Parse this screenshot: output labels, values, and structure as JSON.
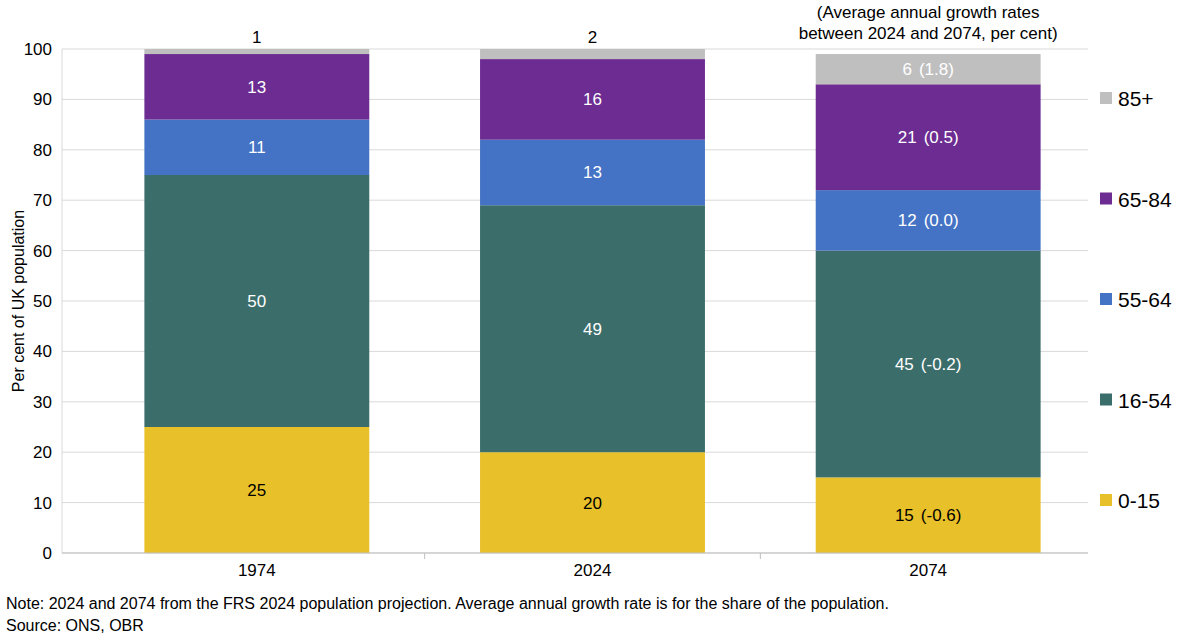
{
  "chart_data": {
    "type": "bar",
    "stacked": true,
    "data_labels": true,
    "grid": true,
    "legend": "right",
    "y_label": "Per cent of UK population",
    "annotations": [
      "(Average annual growth rates",
      "between 2024 and 2074, per cent)"
    ],
    "note": "Note: 2024 and 2074 from the FRS 2024 population projection. Average annual growth rate is for the share of the population.",
    "source": "Source: ONS, OBR",
    "categories": [
      "1974",
      "2024",
      "2074"
    ],
    "ylim": [
      0,
      100
    ],
    "yticks": [
      0,
      10,
      20,
      30,
      40,
      50,
      60,
      70,
      80,
      90,
      100
    ],
    "series": [
      {
        "name": "0-15",
        "color": "#e8c12a",
        "values": [
          25,
          20,
          15
        ],
        "growth_rate": {
          "value": -0.6,
          "label": "(-0.6)"
        }
      },
      {
        "name": "16-54",
        "color": "#3b6e6b",
        "values": [
          50,
          49,
          45
        ],
        "growth_rate": {
          "value": -0.2,
          "label": "(-0.2)"
        }
      },
      {
        "name": "55-64",
        "color": "#4472c4",
        "values": [
          11,
          13,
          12
        ],
        "growth_rate": {
          "value": 0.0,
          "label": "(0.0)"
        }
      },
      {
        "name": "65-84",
        "color": "#6c2c92",
        "values": [
          13,
          16,
          21
        ],
        "growth_rate": {
          "value": 0.5,
          "label": "(0.5)"
        }
      },
      {
        "name": "85+",
        "color": "#bfbfbf",
        "values": [
          1,
          2,
          6
        ],
        "growth_rate": {
          "value": 1.8,
          "label": "(1.8)"
        }
      }
    ]
  }
}
